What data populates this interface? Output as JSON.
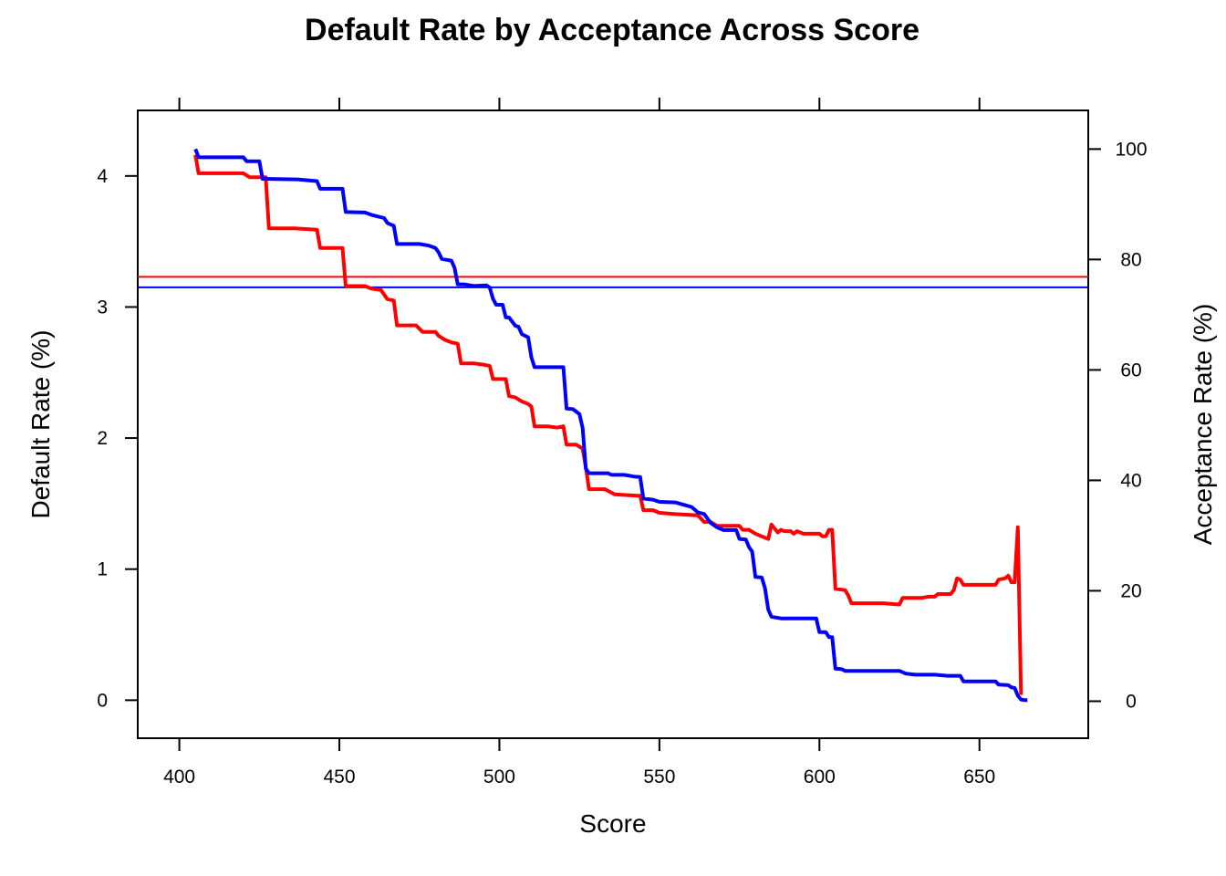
{
  "chart_data": {
    "type": "line",
    "title": "Default Rate by Acceptance Across Score",
    "xlabel": "Score",
    "ylabel_left": "Default Rate (%)",
    "ylabel_right": "Acceptance Rate (%)",
    "xlim": [
      387,
      684
    ],
    "ylim_left": [
      -0.29,
      4.5
    ],
    "ylim_right": [
      -6.7,
      107
    ],
    "x_ticks": [
      400,
      450,
      500,
      550,
      600,
      650
    ],
    "y_left_ticks": [
      0,
      1,
      2,
      3,
      4
    ],
    "y_right_ticks": [
      0,
      20,
      40,
      60,
      80,
      100
    ],
    "grid": false,
    "legend": "none",
    "reference_lines": [
      {
        "axis": "left",
        "y": 3.23,
        "color": "#ff0000"
      },
      {
        "axis": "left",
        "y": 3.15,
        "color": "#0000ff"
      }
    ],
    "series": [
      {
        "axis": "left",
        "color": "#ff0000",
        "points": [
          [
            405,
            4.16
          ],
          [
            406,
            4.02
          ],
          [
            412,
            4.02
          ],
          [
            420,
            4.02
          ],
          [
            422,
            3.99
          ],
          [
            427,
            3.99
          ],
          [
            428,
            3.6
          ],
          [
            436,
            3.6
          ],
          [
            443,
            3.59
          ],
          [
            444,
            3.45
          ],
          [
            451,
            3.45
          ],
          [
            452,
            3.16
          ],
          [
            458,
            3.16
          ],
          [
            460,
            3.14
          ],
          [
            463,
            3.13
          ],
          [
            465,
            3.06
          ],
          [
            467,
            3.05
          ],
          [
            468,
            2.86
          ],
          [
            474,
            2.86
          ],
          [
            476,
            2.81
          ],
          [
            480,
            2.81
          ],
          [
            481,
            2.78
          ],
          [
            483,
            2.75
          ],
          [
            485,
            2.73
          ],
          [
            487,
            2.72
          ],
          [
            488,
            2.57
          ],
          [
            492,
            2.57
          ],
          [
            495,
            2.56
          ],
          [
            497,
            2.55
          ],
          [
            498,
            2.45
          ],
          [
            502,
            2.45
          ],
          [
            503,
            2.32
          ],
          [
            505,
            2.31
          ],
          [
            507,
            2.28
          ],
          [
            509,
            2.26
          ],
          [
            510,
            2.24
          ],
          [
            511,
            2.09
          ],
          [
            515,
            2.09
          ],
          [
            518,
            2.08
          ],
          [
            520,
            2.09
          ],
          [
            521,
            1.95
          ],
          [
            524,
            1.95
          ],
          [
            526,
            1.92
          ],
          [
            527,
            1.78
          ],
          [
            528,
            1.61
          ],
          [
            533,
            1.61
          ],
          [
            536,
            1.57
          ],
          [
            543,
            1.56
          ],
          [
            544,
            1.56
          ],
          [
            545,
            1.45
          ],
          [
            548,
            1.45
          ],
          [
            550,
            1.43
          ],
          [
            555,
            1.42
          ],
          [
            562,
            1.41
          ],
          [
            564,
            1.36
          ],
          [
            566,
            1.36
          ],
          [
            568,
            1.33
          ],
          [
            575,
            1.33
          ],
          [
            576,
            1.3
          ],
          [
            578,
            1.3
          ],
          [
            580,
            1.27
          ],
          [
            582,
            1.25
          ],
          [
            584,
            1.23
          ],
          [
            585,
            1.34
          ],
          [
            587,
            1.28
          ],
          [
            588,
            1.3
          ],
          [
            589,
            1.29
          ],
          [
            591,
            1.29
          ],
          [
            592,
            1.27
          ],
          [
            593,
            1.29
          ],
          [
            595,
            1.27
          ],
          [
            600,
            1.27
          ],
          [
            601,
            1.25
          ],
          [
            602,
            1.25
          ],
          [
            603,
            1.3
          ],
          [
            604,
            1.3
          ],
          [
            605,
            0.85
          ],
          [
            608,
            0.84
          ],
          [
            609,
            0.8
          ],
          [
            610,
            0.74
          ],
          [
            618,
            0.74
          ],
          [
            620,
            0.74
          ],
          [
            625,
            0.73
          ],
          [
            626,
            0.78
          ],
          [
            632,
            0.78
          ],
          [
            634,
            0.79
          ],
          [
            636,
            0.79
          ],
          [
            637,
            0.81
          ],
          [
            641,
            0.81
          ],
          [
            642,
            0.84
          ],
          [
            643,
            0.93
          ],
          [
            644,
            0.92
          ],
          [
            645,
            0.88
          ],
          [
            648,
            0.88
          ],
          [
            654,
            0.88
          ],
          [
            655,
            0.88
          ],
          [
            656,
            0.92
          ],
          [
            658,
            0.93
          ],
          [
            659,
            0.95
          ],
          [
            660,
            0.9
          ],
          [
            661,
            0.9
          ],
          [
            662,
            1.32
          ],
          [
            663,
            0.04
          ]
        ]
      },
      {
        "axis": "right",
        "color": "#0000ff",
        "points": [
          [
            405,
            100
          ],
          [
            406,
            98.5
          ],
          [
            420,
            98.5
          ],
          [
            421,
            97.8
          ],
          [
            425,
            97.8
          ],
          [
            426,
            94.6
          ],
          [
            437,
            94.5
          ],
          [
            443,
            94.2
          ],
          [
            444,
            92.8
          ],
          [
            451,
            92.8
          ],
          [
            452,
            88.6
          ],
          [
            458,
            88.5
          ],
          [
            460,
            88.1
          ],
          [
            464,
            87.5
          ],
          [
            465,
            86.6
          ],
          [
            467,
            86.1
          ],
          [
            468,
            82.8
          ],
          [
            475,
            82.8
          ],
          [
            478,
            82.5
          ],
          [
            480,
            82.1
          ],
          [
            481,
            81.3
          ],
          [
            482,
            80.1
          ],
          [
            485,
            79.8
          ],
          [
            486,
            78.5
          ],
          [
            487,
            75.5
          ],
          [
            489,
            75.5
          ],
          [
            492,
            75.2
          ],
          [
            496,
            75.3
          ],
          [
            497,
            74.9
          ],
          [
            498,
            72.9
          ],
          [
            499,
            71.8
          ],
          [
            501,
            71.8
          ],
          [
            502,
            69.5
          ],
          [
            503,
            69.5
          ],
          [
            505,
            68
          ],
          [
            506,
            67.8
          ],
          [
            507,
            66.5
          ],
          [
            509,
            65.9
          ],
          [
            510,
            62.3
          ],
          [
            511,
            60.5
          ],
          [
            520,
            60.5
          ],
          [
            521,
            53
          ],
          [
            523,
            52.9
          ],
          [
            525,
            52
          ],
          [
            526,
            49.5
          ],
          [
            527,
            42.1
          ],
          [
            528,
            41.3
          ],
          [
            534,
            41.3
          ],
          [
            535,
            41
          ],
          [
            539,
            41
          ],
          [
            542,
            40.7
          ],
          [
            544,
            40.6
          ],
          [
            545,
            36.7
          ],
          [
            548,
            36.5
          ],
          [
            550,
            36.1
          ],
          [
            555,
            36
          ],
          [
            558,
            35.5
          ],
          [
            560,
            35.2
          ],
          [
            562,
            34.2
          ],
          [
            564,
            33.9
          ],
          [
            565,
            33.1
          ],
          [
            566,
            32.3
          ],
          [
            568,
            31.5
          ],
          [
            570,
            31
          ],
          [
            574,
            31
          ],
          [
            575,
            29.4
          ],
          [
            577,
            29.3
          ],
          [
            578,
            27.9
          ],
          [
            579,
            27.1
          ],
          [
            580,
            22.5
          ],
          [
            582,
            22.4
          ],
          [
            583,
            20.5
          ],
          [
            584,
            16.6
          ],
          [
            585,
            15.3
          ],
          [
            588,
            15
          ],
          [
            592,
            15
          ],
          [
            597,
            15
          ],
          [
            599,
            15
          ],
          [
            600,
            12.5
          ],
          [
            602,
            12.5
          ],
          [
            603,
            11.6
          ],
          [
            604,
            11.6
          ],
          [
            605,
            5.9
          ],
          [
            607,
            5.8
          ],
          [
            608,
            5.5
          ],
          [
            612,
            5.5
          ],
          [
            625,
            5.5
          ],
          [
            627,
            5
          ],
          [
            630,
            4.8
          ],
          [
            636,
            4.8
          ],
          [
            640,
            4.6
          ],
          [
            644,
            4.6
          ],
          [
            645,
            3.6
          ],
          [
            650,
            3.6
          ],
          [
            655,
            3.6
          ],
          [
            656,
            3
          ],
          [
            659,
            2.9
          ],
          [
            660,
            2.5
          ],
          [
            661,
            2.4
          ],
          [
            662,
            1
          ],
          [
            663,
            0.3
          ],
          [
            664,
            0.2
          ],
          [
            665,
            0.2
          ]
        ]
      }
    ]
  }
}
